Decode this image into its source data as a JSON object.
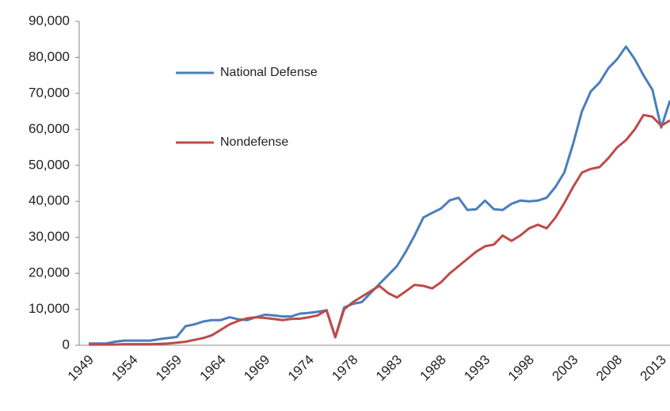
{
  "chart_data": {
    "type": "line",
    "categories": [
      "1949",
      null,
      null,
      null,
      null,
      "1954",
      null,
      null,
      null,
      null,
      "1959",
      null,
      null,
      null,
      null,
      "1964",
      null,
      null,
      null,
      null,
      "1969",
      null,
      null,
      null,
      null,
      "1974",
      null,
      null,
      null,
      null,
      "1978",
      null,
      null,
      null,
      null,
      "1983",
      null,
      null,
      null,
      null,
      "1988",
      null,
      null,
      null,
      null,
      "1993",
      null,
      null,
      null,
      null,
      "1998",
      null,
      null,
      null,
      null,
      "2003",
      null,
      null,
      null,
      null,
      "2008",
      null,
      null,
      null,
      null,
      "2013",
      null
    ],
    "series": [
      {
        "name": "National Defense",
        "color": "#4a7ebb",
        "values": [
          500,
          500,
          500,
          1000,
          1300,
          1300,
          1300,
          1300,
          1700,
          2000,
          2300,
          5300,
          5800,
          6600,
          7000,
          7000,
          7800,
          7200,
          7000,
          7800,
          8500,
          8300,
          8000,
          8000,
          8800,
          9000,
          9300,
          9700,
          2300,
          10500,
          11500,
          12000,
          14500,
          17000,
          19500,
          22000,
          26000,
          30500,
          35500,
          36800,
          38000,
          40300,
          41000,
          37600,
          37800,
          40200,
          37800,
          37600,
          39300,
          40200,
          40000,
          40200,
          41000,
          44000,
          48000,
          56000,
          65000,
          70500,
          73000,
          77000,
          79500,
          83000,
          79500,
          75000,
          71000,
          60500,
          68000
        ]
      },
      {
        "name": "Nondefense",
        "color": "#be4b48",
        "values": [
          200,
          200,
          200,
          200,
          300,
          300,
          300,
          300,
          400,
          500,
          700,
          1000,
          1500,
          2000,
          2800,
          4300,
          5800,
          6800,
          7500,
          7800,
          7600,
          7300,
          7000,
          7300,
          7400,
          7800,
          8300,
          9800,
          2200,
          10000,
          12000,
          13500,
          15000,
          16500,
          14500,
          13300,
          15000,
          16800,
          16500,
          15800,
          17500,
          20000,
          22000,
          24000,
          26000,
          27500,
          28000,
          30500,
          29000,
          30500,
          32500,
          33500,
          32500,
          35500,
          39500,
          44000,
          48000,
          49000,
          49500,
          52000,
          55000,
          57000,
          60000,
          64000,
          63500,
          61000,
          62500
        ]
      }
    ],
    "ylim": [
      0,
      90000
    ],
    "yticks": [
      0,
      {
        "value": 10000,
        "label": "10,000"
      },
      {
        "value": 20000,
        "label": "20,000"
      },
      {
        "value": 30000,
        "label": "30,000"
      },
      {
        "value": 40000,
        "label": "40,000"
      },
      {
        "value": 50000,
        "label": "50,000"
      },
      {
        "value": 60000,
        "label": "60,000"
      },
      {
        "value": 70000,
        "label": "70,000"
      },
      {
        "value": 80000,
        "label": "80,000"
      },
      {
        "value": 90000,
        "label": "90,000"
      }
    ],
    "legend": "upper left",
    "grid": false
  }
}
